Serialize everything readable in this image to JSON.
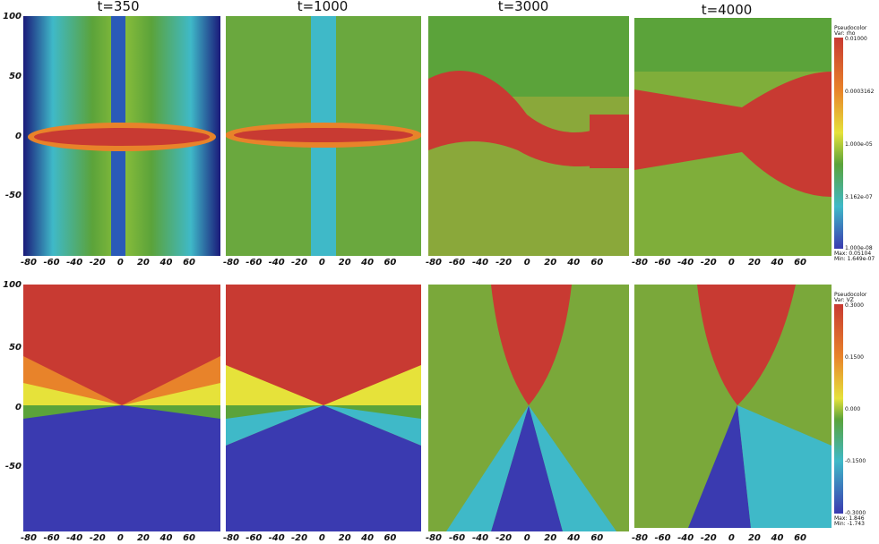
{
  "titles": [
    "t=350",
    "t=1000",
    "t=3000",
    "t=4000"
  ],
  "y_ticks_top": [
    "100",
    "50",
    "0",
    "-50"
  ],
  "y_ticks_bottom": [
    "100",
    "50",
    "0",
    "-50"
  ],
  "x_ticks": [
    "-80",
    "-60",
    "-40",
    "-20",
    "0",
    "20",
    "40",
    "60"
  ],
  "colorbar_top": {
    "header": "Pseudocolor",
    "var": "Var: rho",
    "labels": [
      "0.01000",
      "0.0003162",
      "1.000e-05",
      "3.162e-07",
      "1.000e-08"
    ],
    "max": "Max: 0.05104",
    "min": "Min: 1.649e-07"
  },
  "colorbar_bottom": {
    "header": "Pseudocolor",
    "var": "Var: VZ",
    "labels": [
      "0.3000",
      "0.1500",
      "0.000",
      "-0.1500",
      "-0.3000"
    ],
    "max": "Max: 1.846",
    "min": "Min: -1.743"
  },
  "colors": {
    "red": "#c83a32",
    "orange": "#e8832a",
    "yellow": "#e6e23a",
    "green": "#5ba33a",
    "cyan": "#3fb9c8",
    "blue": "#3a3ab0",
    "navy": "#1a1a7a"
  }
}
